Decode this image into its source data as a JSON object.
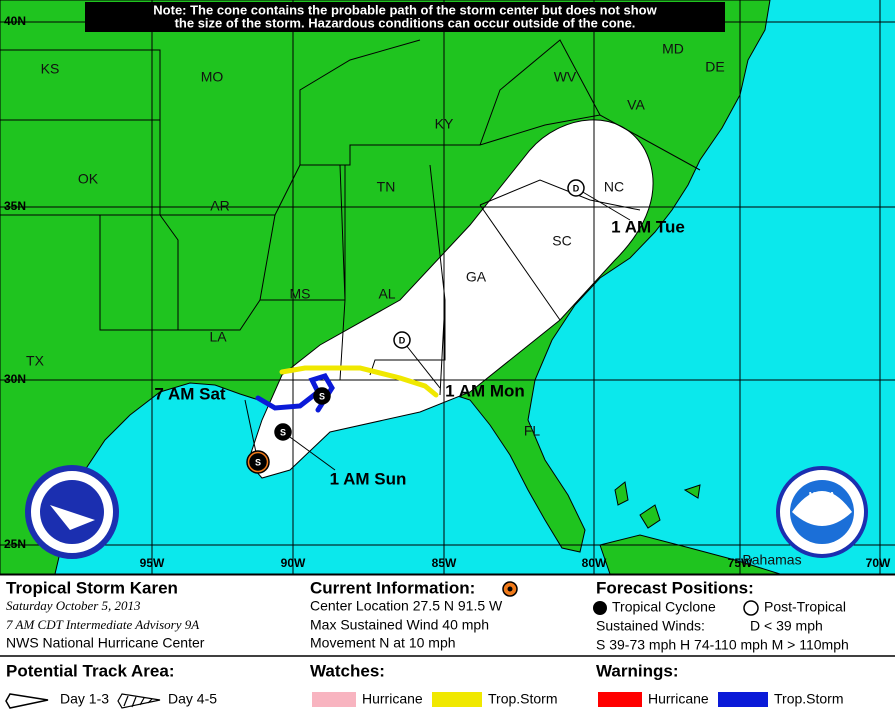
{
  "note": {
    "lines": [
      "Note: The cone contains the probable path of the storm center but does not show",
      "the size of the storm. Hazardous conditions can occur outside of the cone."
    ]
  },
  "grid": {
    "latitude": [
      "40N",
      "35N",
      "30N",
      "25N"
    ],
    "longitude": [
      "95W",
      "90W",
      "85W",
      "80W",
      "75W",
      "70W"
    ]
  },
  "states": [
    "KS",
    "MO",
    "KY",
    "WV",
    "MD",
    "DE",
    "VA",
    "OK",
    "AR",
    "TN",
    "NC",
    "SC",
    "GA",
    "AL",
    "MS",
    "LA",
    "TX",
    "FL"
  ],
  "places": [
    "Bahamas"
  ],
  "track": {
    "labels": [
      "7 AM Sat",
      "1 AM Sun",
      "1 AM Mon",
      "1 AM Tue"
    ],
    "markers": [
      "S",
      "S",
      "S",
      "D",
      "D"
    ]
  },
  "legend": {
    "storm": {
      "name": "Tropical Storm Karen",
      "date": "Saturday  October 5, 2013",
      "advisory": "7 AM CDT Intermediate Advisory 9A",
      "center": "NWS National Hurricane Center"
    },
    "current": {
      "title": "Current Information:",
      "location": "Center Location 27.5 N  91.5 W",
      "wind": "Max Sustained Wind  40 mph",
      "movement": "Movement N at  10 mph"
    },
    "forecast": {
      "title": "Forecast Positions:",
      "tropical": "Tropical Cyclone",
      "post": "Post-Tropical",
      "winds_title": "Sustained Winds:",
      "d": "D  < 39 mph",
      "scale": "S  39-73 mph  H  74-110 mph  M  > 110mph"
    },
    "track_area": {
      "title": "Potential Track Area:",
      "day13": "Day 1-3",
      "day45": "Day 4-5"
    },
    "watches": {
      "title": "Watches:",
      "hurricane": "Hurricane",
      "storm": "Trop.Storm"
    },
    "warnings": {
      "title": "Warnings:",
      "hurricane": "Hurricane",
      "storm": "Trop.Storm"
    }
  }
}
